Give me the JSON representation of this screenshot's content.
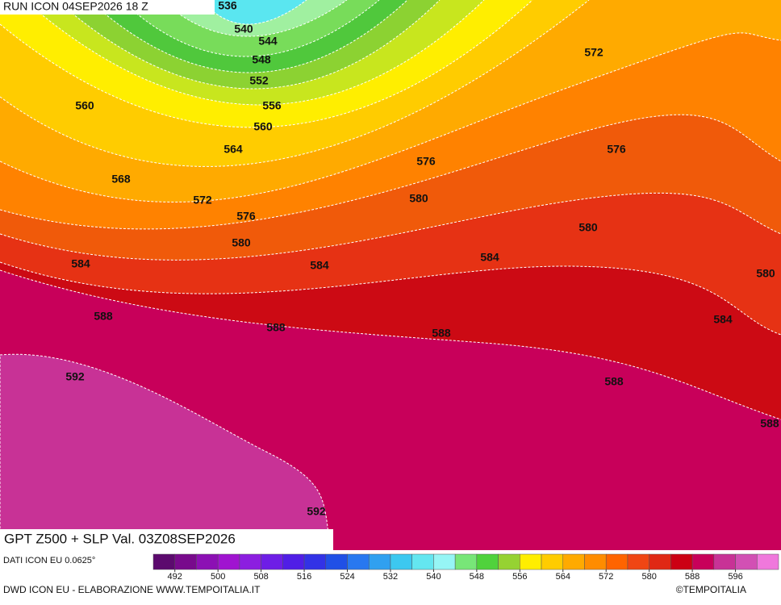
{
  "header": {
    "run": "RUN ICON 04SEP2026 18 Z"
  },
  "map_title": "GPT Z500 + SLP Val. 03Z08SEP2026",
  "contour_labels": [
    536,
    540,
    544,
    548,
    552,
    556,
    560,
    564,
    560,
    568,
    572,
    576,
    580,
    584,
    588,
    588,
    592,
    592,
    576,
    580,
    584,
    584,
    588,
    572,
    576,
    580,
    580,
    584,
    588,
    588
  ],
  "source_note": "DATI ICON EU 0.0625°",
  "colorbar": {
    "bins": [
      488,
      492,
      496,
      500,
      504,
      508,
      512,
      516,
      520,
      524,
      528,
      532,
      536,
      540,
      544,
      548,
      552,
      556,
      560,
      564,
      568,
      572,
      576,
      580,
      584,
      588,
      592,
      596,
      600,
      604
    ],
    "colors": [
      "#5c0a6e",
      "#780a8c",
      "#8c10b4",
      "#a014d0",
      "#8c1ee0",
      "#6e1ee6",
      "#501ee6",
      "#3232e6",
      "#2050e6",
      "#2878f0",
      "#30a0f0",
      "#3cc8f0",
      "#64e6f0",
      "#96f5f5",
      "#78e678",
      "#50d23c",
      "#96d232",
      "#ffee00",
      "#ffcc00",
      "#ffaa00",
      "#ff8c00",
      "#ff6400",
      "#f04614",
      "#e02814",
      "#cc0014",
      "#c8005a",
      "#c83296",
      "#d250b4",
      "#f078dc"
    ],
    "ticks": [
      492,
      500,
      508,
      516,
      524,
      532,
      540,
      548,
      556,
      564,
      572,
      580,
      588,
      596
    ]
  },
  "footer": {
    "credit": "DWD ICON EU - ELABORAZIONE WWW.TEMPOITALIA.IT",
    "copyright": "©TEMPOITALIA"
  }
}
